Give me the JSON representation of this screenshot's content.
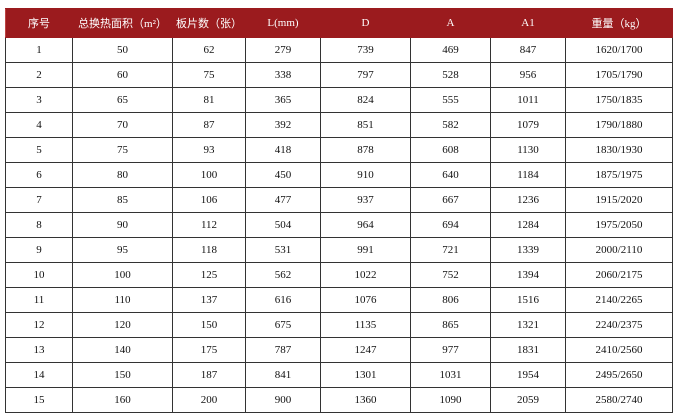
{
  "table": {
    "header": [
      "序号",
      "总换热面积（m²）",
      "板片数（张）",
      "L(mm)",
      "D",
      "A",
      "A1",
      "重量（kg）"
    ],
    "rows": [
      [
        1,
        50,
        62,
        279,
        739,
        469,
        847,
        "1620/1700"
      ],
      [
        2,
        60,
        75,
        338,
        797,
        528,
        956,
        "1705/1790"
      ],
      [
        3,
        65,
        81,
        365,
        824,
        555,
        1011,
        "1750/1835"
      ],
      [
        4,
        70,
        87,
        392,
        851,
        582,
        1079,
        "1790/1880"
      ],
      [
        5,
        75,
        93,
        418,
        878,
        608,
        1130,
        "1830/1930"
      ],
      [
        6,
        80,
        100,
        450,
        910,
        640,
        1184,
        "1875/1975"
      ],
      [
        7,
        85,
        106,
        477,
        937,
        667,
        1236,
        "1915/2020"
      ],
      [
        8,
        90,
        112,
        504,
        964,
        694,
        1284,
        "1975/2050"
      ],
      [
        9,
        95,
        118,
        531,
        991,
        721,
        1339,
        "2000/2110"
      ],
      [
        10,
        100,
        125,
        562,
        1022,
        752,
        1394,
        "2060/2175"
      ],
      [
        11,
        110,
        137,
        616,
        1076,
        806,
        1516,
        "2140/2265"
      ],
      [
        12,
        120,
        150,
        675,
        1135,
        865,
        1321,
        "2240/2375"
      ],
      [
        13,
        140,
        175,
        787,
        1247,
        977,
        1831,
        "2410/2560"
      ],
      [
        14,
        150,
        187,
        841,
        1301,
        1031,
        1954,
        "2495/2650"
      ],
      [
        15,
        160,
        200,
        900,
        1360,
        1090,
        2059,
        "2580/2740"
      ]
    ]
  }
}
